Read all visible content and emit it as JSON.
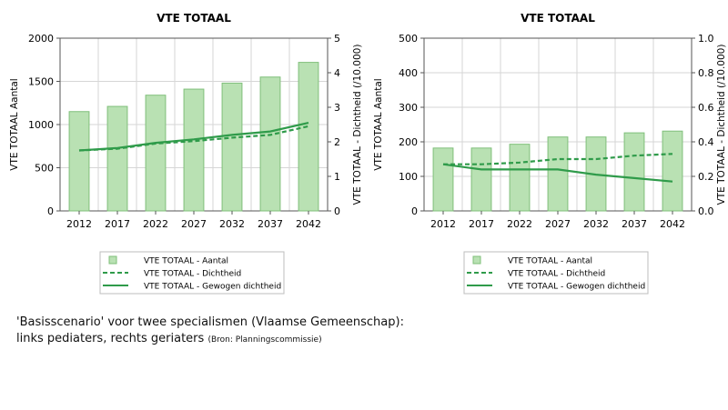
{
  "chart_data": [
    {
      "type": "bar",
      "title": "VTE TOTAAL",
      "categories": [
        "2012",
        "2017",
        "2022",
        "2027",
        "2032",
        "2037",
        "2042"
      ],
      "ylabel": "VTE TOTAAL Aantal",
      "y2label": "VTE TOTAAL - Dichtheid (/10.000)",
      "ylim": [
        0,
        2000
      ],
      "y2lim": [
        0,
        5
      ],
      "yticks": [
        "0",
        "500",
        "1000",
        "1500",
        "2000"
      ],
      "y2ticks": [
        "0",
        "1",
        "2",
        "3",
        "4",
        "5"
      ],
      "series": [
        {
          "name": "VTE TOTAAL - Aantal",
          "kind": "bar",
          "axis": "left",
          "values": [
            1150,
            1210,
            1340,
            1410,
            1480,
            1550,
            1720
          ]
        },
        {
          "name": "VTE TOTAAL - Dichtheid",
          "kind": "dashed-line",
          "axis": "right",
          "values": [
            1.75,
            1.8,
            1.95,
            2.02,
            2.12,
            2.2,
            2.45
          ]
        },
        {
          "name": "VTE TOTAAL - Gewogen dichtheid",
          "kind": "solid-line",
          "axis": "right",
          "values": [
            1.75,
            1.82,
            1.97,
            2.07,
            2.2,
            2.3,
            2.55
          ]
        }
      ],
      "grid": true,
      "legend": "bottom"
    },
    {
      "type": "bar",
      "title": "VTE TOTAAL",
      "categories": [
        "2012",
        "2017",
        "2022",
        "2027",
        "2032",
        "2037",
        "2042"
      ],
      "ylabel": "VTE TOTAAL Aantal",
      "y2label": "VTE TOTAAL - Dichtheid (/10.000)",
      "ylim": [
        0,
        500
      ],
      "y2lim": [
        0,
        1
      ],
      "yticks": [
        "0",
        "100",
        "200",
        "300",
        "400",
        "500"
      ],
      "y2ticks": [
        "0.0",
        "0.2",
        "0.4",
        "0.6",
        "0.8",
        "1.0"
      ],
      "series": [
        {
          "name": "VTE TOTAAL - Aantal",
          "kind": "bar",
          "axis": "left",
          "values": [
            182,
            182,
            193,
            214,
            214,
            226,
            231
          ]
        },
        {
          "name": "VTE TOTAAL - Dichtheid",
          "kind": "dashed-line",
          "axis": "right",
          "values": [
            0.27,
            0.27,
            0.28,
            0.3,
            0.3,
            0.32,
            0.33
          ]
        },
        {
          "name": "VTE TOTAAL - Gewogen dichtheid",
          "kind": "solid-line",
          "axis": "right",
          "values": [
            0.27,
            0.24,
            0.24,
            0.24,
            0.21,
            0.19,
            0.17
          ]
        }
      ],
      "grid": true,
      "legend": "bottom"
    }
  ],
  "caption": {
    "line1": "'Basisscenario' voor twee specialismen (Vlaamse Gemeenschap):",
    "line2": "links pediaters, rechts geriaters",
    "source": "(Bron: Planningscommissie)"
  },
  "colors": {
    "bar_fill": "#b9e1b3",
    "bar_edge": "#7fbf7a",
    "line": "#2f9b4a",
    "grid": "#d6d6d6",
    "axis": "#555555"
  }
}
